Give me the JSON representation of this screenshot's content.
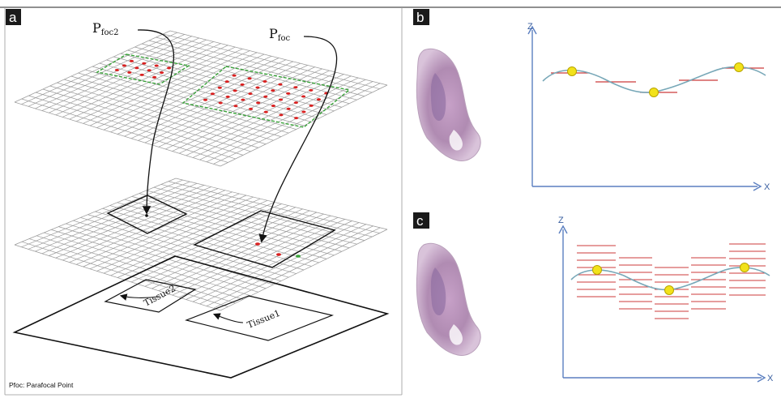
{
  "panels": {
    "a": {
      "label": "a"
    },
    "b": {
      "label": "b"
    },
    "c": {
      "label": "c"
    }
  },
  "annotations": {
    "pfoc2_main": "P",
    "pfoc2_sub": "foc2",
    "pfoc_main": "P",
    "pfoc_sub": "foc",
    "tissue1": "Tissue1",
    "tissue2": "Tissue2",
    "footnote": "Pfoc: Parafocal Point"
  },
  "axes": {
    "b": {
      "vertical": "Z",
      "horizontal": "X"
    },
    "c": {
      "vertical": "Z",
      "horizontal": "X"
    }
  },
  "colors": {
    "grid": "#9a9a9a",
    "focus_border": "#3aa43a",
    "focus_point": "#d92020",
    "curve": "#78a8b8",
    "plane": "#cc3b3b",
    "focus_marker": "#f2e21a",
    "axis": "#5b7fc0",
    "tissue": "#b48ab0"
  },
  "icons": {
    "tissue_b": "tissue-section-image",
    "tissue_c": "tissue-section-image"
  }
}
